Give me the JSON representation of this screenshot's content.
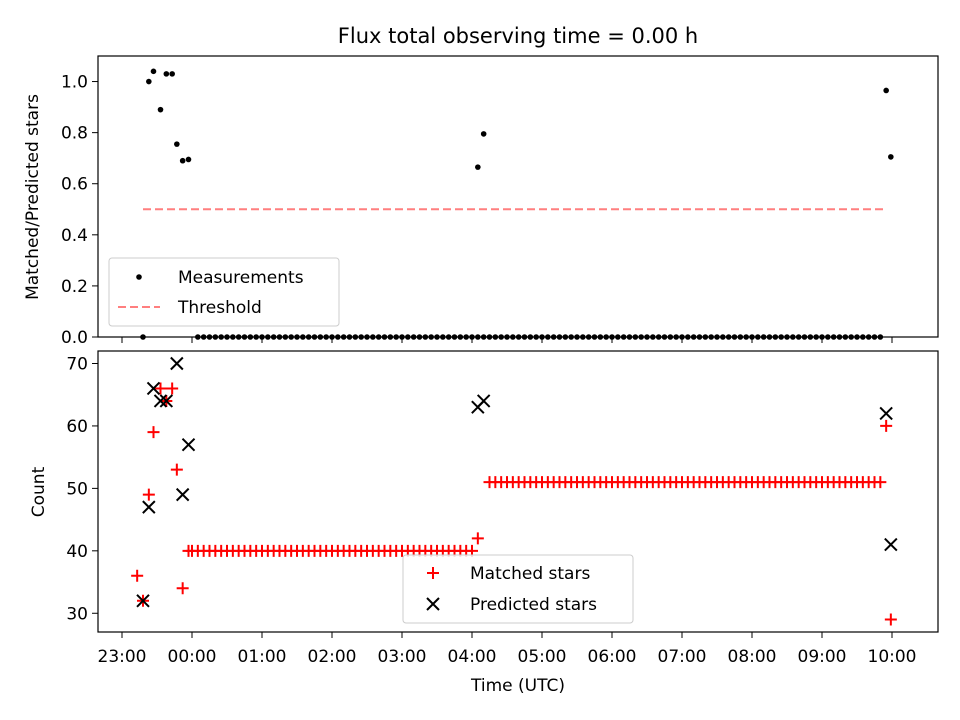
{
  "chart_data": [
    {
      "type": "scatter",
      "title": "Flux total observing time = 0.00 h",
      "xlabel": "",
      "ylabel": "Matched/Predicted stars",
      "ylim": [
        0,
        1.1
      ],
      "y_ticks": [
        0.0,
        0.2,
        0.4,
        0.6,
        0.8,
        1.0
      ],
      "y_tick_labels": [
        "0.0",
        "0.2",
        "0.4",
        "0.6",
        "0.8",
        "1.0"
      ],
      "legend": {
        "placement": "lower-left",
        "entries": [
          "Measurements",
          "Threshold"
        ]
      },
      "series": [
        {
          "name": "Measurements",
          "color": "#000000",
          "marker": "dot",
          "points": [
            [
              "23:18",
              0.0
            ],
            [
              "23:23",
              1.0
            ],
            [
              "23:27",
              1.04
            ],
            [
              "23:33",
              0.89
            ],
            [
              "23:38",
              1.03
            ],
            [
              "23:43",
              1.03
            ],
            [
              "23:47",
              0.755
            ],
            [
              "23:52",
              0.69
            ],
            [
              "23:57",
              0.695
            ],
            [
              "04:05",
              0.665
            ],
            [
              "04:10",
              0.795
            ],
            [
              "09:55",
              0.965
            ],
            [
              "09:59",
              0.705
            ]
          ],
          "zero_run": {
            "y": 0.0,
            "start": "00:05",
            "end": "09:50",
            "every_min": 5
          }
        },
        {
          "name": "Threshold",
          "color": "#ff7f7f",
          "style": "dashed",
          "points": [
            [
              "23:18",
              0.5
            ],
            [
              "09:55",
              0.5
            ]
          ]
        }
      ]
    },
    {
      "type": "scatter",
      "title": "",
      "xlabel": "Time (UTC)",
      "ylabel": "Count",
      "ylim": [
        27,
        72
      ],
      "y_ticks": [
        30,
        40,
        50,
        60,
        70
      ],
      "y_tick_labels": [
        "30",
        "40",
        "50",
        "60",
        "70"
      ],
      "x_ticks": [
        "23:00",
        "00:00",
        "01:00",
        "02:00",
        "03:00",
        "04:00",
        "05:00",
        "06:00",
        "07:00",
        "08:00",
        "09:00",
        "10:00"
      ],
      "legend": {
        "placement": "lower-center",
        "entries": [
          "Matched stars",
          "Predicted stars"
        ]
      },
      "series": [
        {
          "name": "Matched stars",
          "color": "#ff0000",
          "marker": "plus",
          "points": [
            [
              "23:13",
              36
            ],
            [
              "23:18",
              32
            ],
            [
              "23:23",
              49
            ],
            [
              "23:27",
              59
            ],
            [
              "23:33",
              66
            ],
            [
              "23:38",
              64
            ],
            [
              "23:43",
              66
            ],
            [
              "23:47",
              53
            ],
            [
              "23:52",
              34
            ],
            [
              "23:57",
              40
            ],
            [
              "04:05",
              42
            ],
            [
              "09:55",
              60
            ],
            [
              "09:59",
              29
            ]
          ],
          "runs": [
            {
              "y": 40,
              "start": "00:00",
              "end": "04:00",
              "every_min": 5
            },
            {
              "y": 51,
              "start": "04:15",
              "end": "09:50",
              "every_min": 5
            }
          ]
        },
        {
          "name": "Predicted stars",
          "color": "#000000",
          "marker": "x",
          "points": [
            [
              "23:18",
              32
            ],
            [
              "23:23",
              47
            ],
            [
              "23:27",
              66
            ],
            [
              "23:33",
              64
            ],
            [
              "23:38",
              64
            ],
            [
              "23:47",
              70
            ],
            [
              "23:52",
              49
            ],
            [
              "23:57",
              57
            ],
            [
              "04:05",
              63
            ],
            [
              "04:10",
              64
            ],
            [
              "09:55",
              62
            ],
            [
              "09:59",
              41
            ]
          ]
        }
      ]
    }
  ]
}
